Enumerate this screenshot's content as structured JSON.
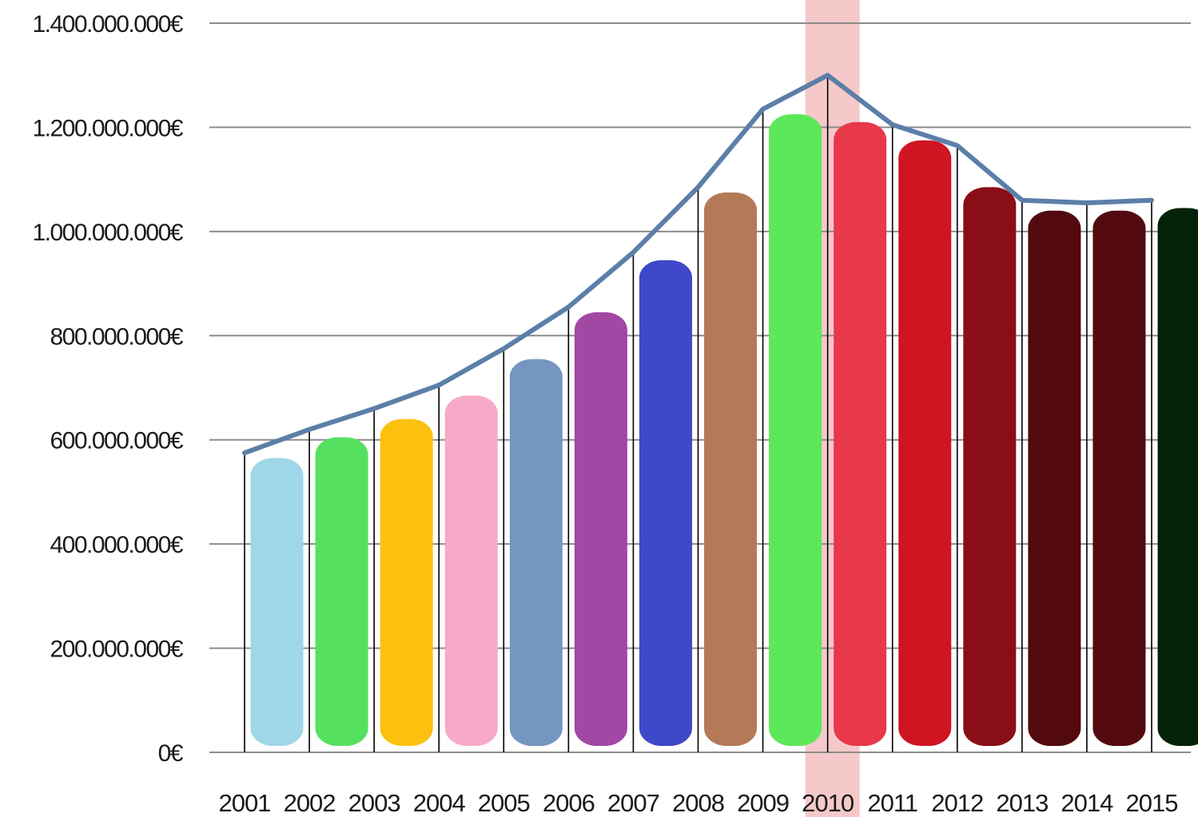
{
  "chart_data": {
    "type": "bar",
    "categories": [
      "2001",
      "2002",
      "2003",
      "2004",
      "2005",
      "2006",
      "2007",
      "2008",
      "2009",
      "2010",
      "2011",
      "2012",
      "2013",
      "2014",
      "2015"
    ],
    "series": [
      {
        "values": [
          565000000,
          605000000,
          640000000,
          685000000,
          755000000,
          845000000,
          945000000,
          1075000000,
          1225000000,
          1210000000,
          1175000000,
          1085000000,
          1040000000,
          1040000000,
          1045000000
        ],
        "colors": [
          "#9fd6e8",
          "#56e060",
          "#fcc10f",
          "#f7aac8",
          "#7496c0",
          "#a147a4",
          "#3f48c8",
          "#b47a58",
          "#5ce85a",
          "#e8384a",
          "#d01422",
          "#8a0e17",
          "#520a0e",
          "#520a0e",
          "#042208"
        ]
      },
      {
        "type": "line",
        "values": [
          575000000,
          620000000,
          660000000,
          705000000,
          775000000,
          855000000,
          960000000,
          1085000000,
          1235000000,
          1300000000,
          1205000000,
          1165000000,
          1060000000,
          1055000000,
          1060000000
        ],
        "color": "#5b7fa8"
      }
    ],
    "highlight_category": "2010",
    "highlight_color": "#f5c9c9",
    "yticks": [
      "0€",
      "200.000.000€",
      "400.000.000€",
      "600.000.000€",
      "800.000.000€",
      "1.000.000.000€",
      "1.200.000.000€",
      "1.400.000.000€"
    ],
    "ylim": [
      0,
      1400000000
    ],
    "grid": true,
    "title": "",
    "xlabel": "",
    "ylabel": ""
  }
}
